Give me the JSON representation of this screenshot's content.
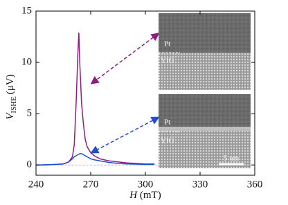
{
  "chart_data": {
    "type": "line",
    "x_label_symbol": "H",
    "x_label_unit": "(mT)",
    "y_label_symbol": "V",
    "y_label_subscript": "ISHE",
    "y_label_unit": "(μV)",
    "x": [
      240,
      245,
      250,
      255,
      258,
      260,
      261,
      262,
      263,
      263.5,
      264,
      265,
      266,
      267,
      268,
      270,
      272,
      275,
      280,
      285,
      290,
      295,
      300,
      305
    ],
    "series": [
      {
        "color": "#8e1c82",
        "values": [
          0,
          0,
          0.05,
          0.1,
          0.3,
          0.8,
          2,
          6,
          11,
          12.9,
          10,
          6,
          4,
          2.5,
          1.8,
          1.2,
          0.9,
          0.6,
          0.4,
          0.3,
          0.2,
          0.15,
          0.1,
          0.1
        ]
      },
      {
        "color": "#1f4fd0",
        "values": [
          0,
          0.02,
          0.05,
          0.1,
          0.3,
          0.6,
          0.8,
          0.9,
          1.0,
          1.05,
          1.1,
          1.1,
          1.0,
          0.9,
          0.8,
          0.6,
          0.5,
          0.4,
          0.25,
          0.15,
          0.1,
          0.08,
          0.05,
          0.05
        ]
      }
    ],
    "xlim": [
      240,
      360
    ],
    "xticks": [
      240,
      270,
      300,
      330,
      360
    ],
    "ylim": [
      -1,
      15
    ],
    "yticks": [
      0,
      5,
      10,
      15
    ],
    "hline": 0,
    "insets": [
      {
        "top_label": "Pt",
        "bottom_label": "YIG"
      },
      {
        "top_label": "Pt",
        "bottom_label": "YIG",
        "scale_bar": "5 nm"
      }
    ]
  }
}
